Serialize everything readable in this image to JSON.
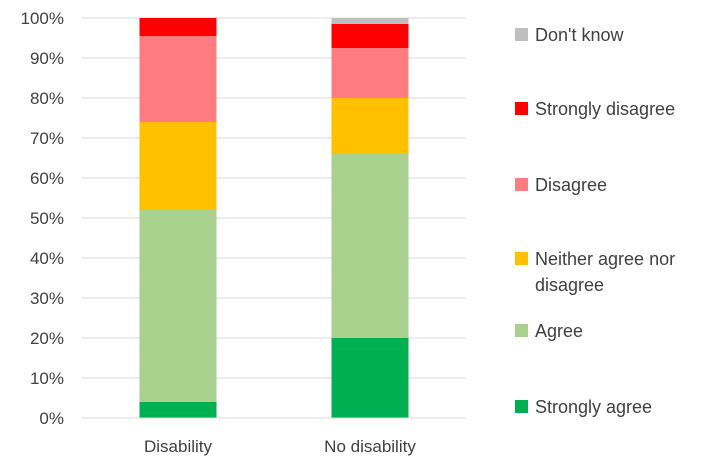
{
  "chart_data": {
    "type": "bar",
    "stacked": true,
    "categories": [
      "Disability",
      "No disability"
    ],
    "yticks": [
      "0%",
      "10%",
      "20%",
      "30%",
      "40%",
      "50%",
      "60%",
      "70%",
      "80%",
      "90%",
      "100%"
    ],
    "ylim": [
      0,
      100
    ],
    "grid": true,
    "legend_position": "right",
    "series": [
      {
        "name": "Strongly agree",
        "color": "#00b050",
        "values": [
          4,
          20
        ]
      },
      {
        "name": "Agree",
        "color": "#a9d18e",
        "values": [
          48,
          46
        ]
      },
      {
        "name": "Neither agree nor disagree",
        "color": "#ffc000",
        "values": [
          22,
          14
        ]
      },
      {
        "name": "Disagree",
        "color": "#ff7c80",
        "values": [
          21.5,
          12.5
        ]
      },
      {
        "name": "Strongly disagree",
        "color": "#ff0000",
        "values": [
          4.5,
          6
        ]
      },
      {
        "name": "Don't know",
        "color": "#bfbfbf",
        "values": [
          0,
          1.5
        ]
      }
    ],
    "legend_lines": [
      [
        "Don't know"
      ],
      [
        "Strongly disagree"
      ],
      [
        "Disagree"
      ],
      [
        "Neither agree nor",
        "disagree"
      ],
      [
        "Agree"
      ],
      [
        "Strongly agree"
      ]
    ]
  }
}
